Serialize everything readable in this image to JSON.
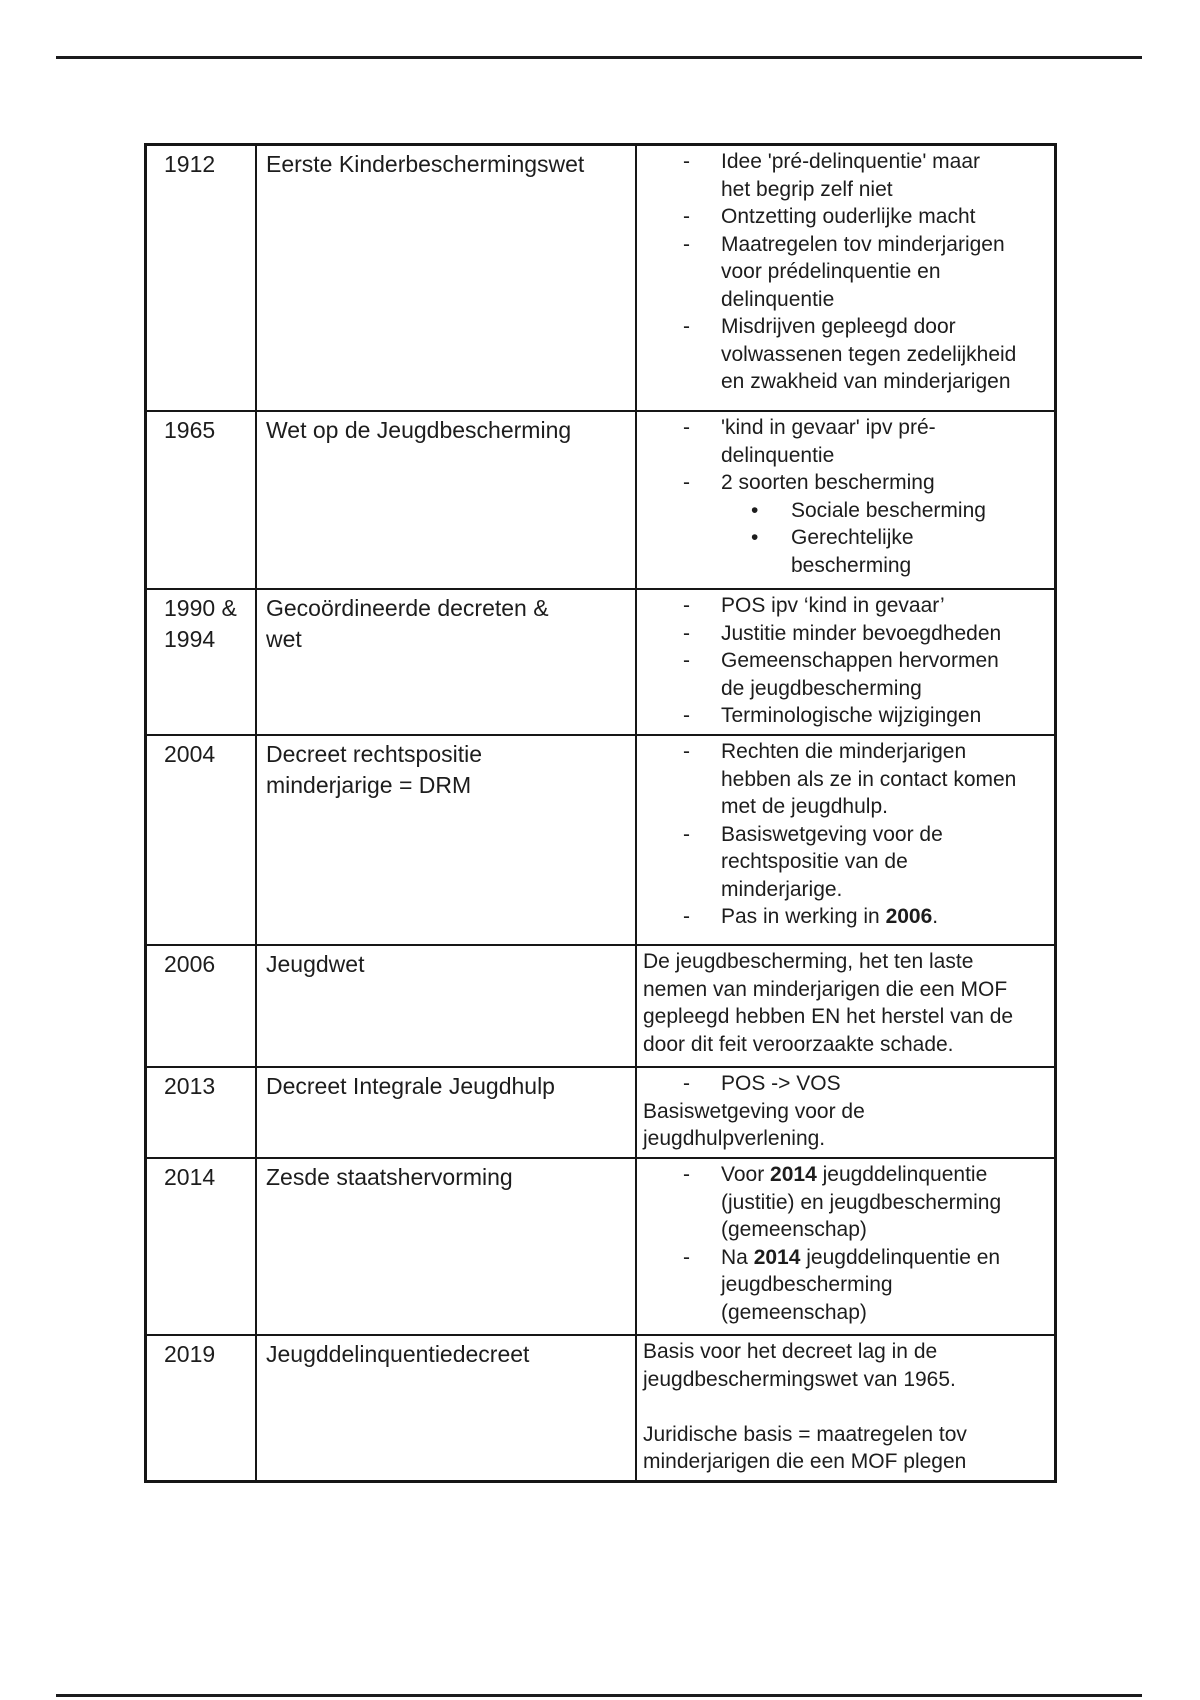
{
  "colors": {
    "ink": "#1d1d1d",
    "border": "#161616"
  },
  "markers": {
    "dash": "-",
    "dot": "•"
  },
  "table": {
    "rows": [
      {
        "year": "1912",
        "law": "Eerste Kinderbeschermingswet",
        "details": [
          {
            "type": "bullet",
            "segments": [
              {
                "t": "Idee 'pré-delinquentie' maar\nhet begrip zelf niet"
              }
            ]
          },
          {
            "type": "bullet",
            "segments": [
              {
                "t": "Ontzetting ouderlijke macht"
              }
            ]
          },
          {
            "type": "bullet",
            "segments": [
              {
                "t": "Maatregelen tov minderjarigen\nvoor prédelinquentie en\ndelinquentie"
              }
            ]
          },
          {
            "type": "bullet",
            "segments": [
              {
                "t": "Misdrijven gepleegd door\nvolwassenen tegen zedelijkheid\nen zwakheid van minderjarigen"
              }
            ]
          }
        ]
      },
      {
        "year": "1965",
        "law": "Wet op de Jeugdbescherming",
        "details": [
          {
            "type": "bullet",
            "segments": [
              {
                "t": "'kind in gevaar' ipv pré-\ndelinquentie"
              }
            ]
          },
          {
            "type": "bullet",
            "segments": [
              {
                "t": "2 soorten bescherming"
              }
            ]
          },
          {
            "type": "sub",
            "segments": [
              {
                "t": "Sociale bescherming"
              }
            ]
          },
          {
            "type": "sub",
            "segments": [
              {
                "t": "Gerechtelijke\nbescherming"
              }
            ]
          }
        ]
      },
      {
        "year": "1990 &\n1994",
        "law": "Gecoördineerde decreten &\nwet",
        "details": [
          {
            "type": "bullet",
            "segments": [
              {
                "t": "POS ipv ‘kind in gevaar’"
              }
            ]
          },
          {
            "type": "bullet",
            "segments": [
              {
                "t": "Justitie minder bevoegdheden"
              }
            ]
          },
          {
            "type": "bullet",
            "segments": [
              {
                "t": "Gemeenschappen hervormen\nde jeugdbescherming"
              }
            ]
          },
          {
            "type": "bullet",
            "segments": [
              {
                "t": "Terminologische wijzigingen"
              }
            ]
          }
        ]
      },
      {
        "year": "2004",
        "law": "Decreet rechtspositie\nminderjarige = DRM",
        "details": [
          {
            "type": "bullet",
            "segments": [
              {
                "t": "Rechten die minderjarigen\nhebben als ze in contact komen\nmet de jeugdhulp."
              }
            ]
          },
          {
            "type": "bullet",
            "segments": [
              {
                "t": "Basiswetgeving voor de\nrechtspositie van de\nminderjarige."
              }
            ]
          },
          {
            "type": "bullet",
            "segments": [
              {
                "t": "Pas in werking in "
              },
              {
                "t": "2006",
                "b": true
              },
              {
                "t": "."
              }
            ]
          }
        ]
      },
      {
        "year": "2006",
        "law": "Jeugdwet",
        "details": [
          {
            "type": "para",
            "segments": [
              {
                "t": "De jeugdbescherming, het ten laste\nnemen van minderjarigen die een MOF\ngepleegd hebben EN het herstel van de\ndoor dit feit veroorzaakte schade."
              }
            ]
          }
        ]
      },
      {
        "year": "2013",
        "law": "Decreet Integrale Jeugdhulp",
        "details": [
          {
            "type": "bullet",
            "segments": [
              {
                "t": "POS -> VOS"
              }
            ]
          },
          {
            "type": "para",
            "segments": [
              {
                "t": "Basiswetgeving voor de\njeugdhulpverlening."
              }
            ]
          }
        ]
      },
      {
        "year": "2014",
        "law": "Zesde staatshervorming",
        "details": [
          {
            "type": "bullet",
            "segments": [
              {
                "t": "Voor "
              },
              {
                "t": "2014",
                "b": true
              },
              {
                "t": " jeugddelinquentie\n(justitie) en jeugdbescherming\n(gemeenschap)"
              }
            ]
          },
          {
            "type": "bullet",
            "segments": [
              {
                "t": "Na "
              },
              {
                "t": "2014",
                "b": true
              },
              {
                "t": " jeugddelinquentie en\njeugdbescherming\n(gemeenschap)"
              }
            ]
          }
        ]
      },
      {
        "year": "2019",
        "law": "Jeugddelinquentiedecreet",
        "details": [
          {
            "type": "para",
            "segments": [
              {
                "t": "Basis voor het decreet lag in de\njeugdbeschermingswet van 1965."
              }
            ]
          },
          {
            "type": "blank"
          },
          {
            "type": "para",
            "segments": [
              {
                "t": "Juridische basis = maatregelen tov\nminderjarigen die een MOF plegen"
              }
            ]
          }
        ]
      }
    ]
  }
}
